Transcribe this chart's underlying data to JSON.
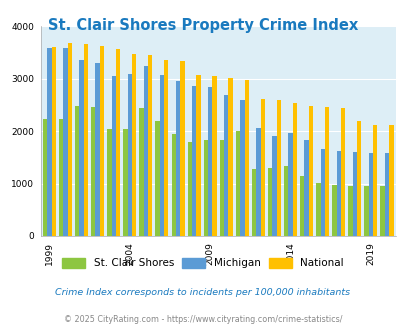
{
  "title": "St. Clair Shores Property Crime Index",
  "years": [
    1999,
    2000,
    2001,
    2002,
    2003,
    2004,
    2005,
    2006,
    2007,
    2008,
    2009,
    2010,
    2011,
    2012,
    2013,
    2014,
    2015,
    2016,
    2017,
    2018,
    2019,
    2020
  ],
  "stclair": [
    2230,
    2240,
    2490,
    2470,
    2040,
    2040,
    2450,
    2190,
    1940,
    1800,
    1840,
    1840,
    2000,
    1270,
    1290,
    1340,
    1150,
    1010,
    970,
    960,
    960,
    960
  ],
  "michigan": [
    3580,
    3590,
    3360,
    3310,
    3060,
    3090,
    3245,
    3070,
    2950,
    2860,
    2840,
    2690,
    2600,
    2060,
    1910,
    1960,
    1840,
    1660,
    1620,
    1600,
    1580,
    1580
  ],
  "national": [
    3610,
    3680,
    3670,
    3620,
    3560,
    3480,
    3445,
    3360,
    3330,
    3080,
    3050,
    3020,
    2980,
    2610,
    2590,
    2540,
    2490,
    2460,
    2450,
    2200,
    2110,
    2110
  ],
  "color_stclair": "#8dc641",
  "color_michigan": "#5b9bd5",
  "color_national": "#ffc000",
  "bg_color": "#ddeef6",
  "ylim": [
    0,
    4000
  ],
  "yticks": [
    0,
    1000,
    2000,
    3000,
    4000
  ],
  "subtitle": "Crime Index corresponds to incidents per 100,000 inhabitants",
  "footer": "© 2025 CityRating.com - https://www.cityrating.com/crime-statistics/",
  "legend_labels": [
    "St. Clair Shores",
    "Michigan",
    "National"
  ],
  "label_years": [
    1999,
    2004,
    2009,
    2014,
    2019
  ]
}
